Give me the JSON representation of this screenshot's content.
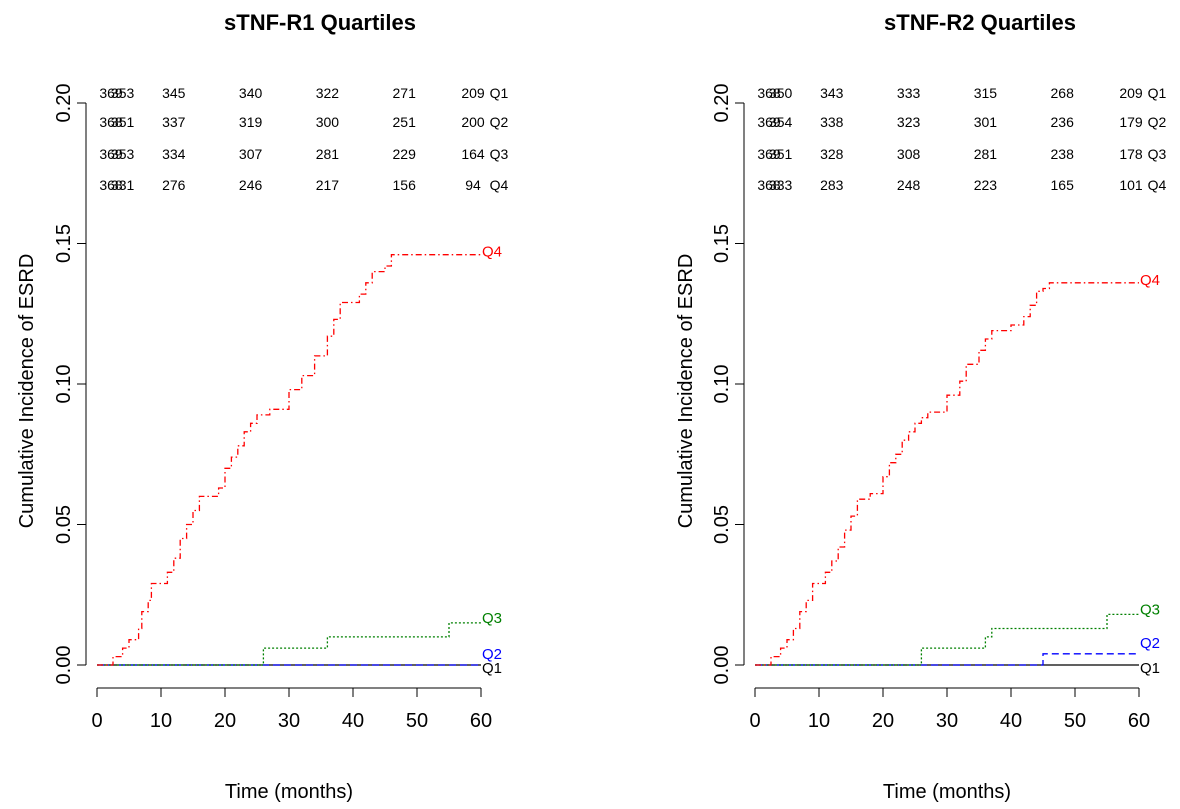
{
  "chart_data": [
    {
      "type": "line",
      "title": "sTNF-R1 Quartiles",
      "xlabel": "Time (months)",
      "ylabel": "Cumulative Incidence of ESRD",
      "xlim": [
        0,
        60
      ],
      "ylim": [
        0,
        0.2
      ],
      "x_ticks": [
        0,
        10,
        20,
        30,
        40,
        50,
        60
      ],
      "y_ticks": [
        0.0,
        0.05,
        0.1,
        0.15,
        0.2
      ],
      "grid": false,
      "at_risk": {
        "times": [
          0,
          4,
          12,
          24,
          36,
          48,
          60
        ],
        "rows": [
          {
            "label": "Q1",
            "values": [
              "369",
              "353",
              "345",
              "340",
              "322",
              "271",
              "209"
            ]
          },
          {
            "label": "Q2",
            "values": [
              "368",
              "351",
              "337",
              "319",
              "300",
              "251",
              "200"
            ]
          },
          {
            "label": "Q3",
            "values": [
              "369",
              "353",
              "334",
              "307",
              "281",
              "229",
              "164"
            ]
          },
          {
            "label": "Q4",
            "values": [
              "368",
              "331",
              "276",
              "246",
              "217",
              "156",
              "94"
            ]
          }
        ]
      },
      "series": [
        {
          "name": "Q1",
          "color": "#000000",
          "dash": "solid",
          "points": [
            [
              0,
              0
            ],
            [
              60,
              0
            ]
          ]
        },
        {
          "name": "Q2",
          "color": "#0000ff",
          "dash": "dashed",
          "points": [
            [
              0,
              0
            ],
            [
              60,
              0
            ]
          ]
        },
        {
          "name": "Q3",
          "color": "#008000",
          "dash": "dotted",
          "points": [
            [
              0,
              0
            ],
            [
              26,
              0
            ],
            [
              26,
              0.006
            ],
            [
              36,
              0.006
            ],
            [
              36,
              0.01
            ],
            [
              55,
              0.01
            ],
            [
              55,
              0.015
            ],
            [
              60,
              0.015
            ]
          ]
        },
        {
          "name": "Q4",
          "color": "#ff0000",
          "dash": "dotdash",
          "points": [
            [
              0,
              0
            ],
            [
              2.5,
              0
            ],
            [
              2.5,
              0.003
            ],
            [
              4,
              0.003
            ],
            [
              4,
              0.006
            ],
            [
              5,
              0.006
            ],
            [
              5,
              0.009
            ],
            [
              6.5,
              0.009
            ],
            [
              6.5,
              0.013
            ],
            [
              7,
              0.013
            ],
            [
              7,
              0.019
            ],
            [
              8,
              0.019
            ],
            [
              8,
              0.023
            ],
            [
              8.5,
              0.023
            ],
            [
              8.5,
              0.029
            ],
            [
              11,
              0.029
            ],
            [
              11,
              0.033
            ],
            [
              12,
              0.033
            ],
            [
              12,
              0.038
            ],
            [
              13,
              0.038
            ],
            [
              13,
              0.045
            ],
            [
              14,
              0.045
            ],
            [
              14,
              0.05
            ],
            [
              15,
              0.05
            ],
            [
              15,
              0.055
            ],
            [
              16,
              0.055
            ],
            [
              16,
              0.06
            ],
            [
              19,
              0.06
            ],
            [
              19,
              0.063
            ],
            [
              20,
              0.063
            ],
            [
              20,
              0.07
            ],
            [
              21,
              0.07
            ],
            [
              21,
              0.074
            ],
            [
              22,
              0.074
            ],
            [
              22,
              0.078
            ],
            [
              23,
              0.078
            ],
            [
              23,
              0.083
            ],
            [
              24,
              0.083
            ],
            [
              24,
              0.086
            ],
            [
              25,
              0.086
            ],
            [
              25,
              0.089
            ],
            [
              27,
              0.089
            ],
            [
              27,
              0.091
            ],
            [
              30,
              0.091
            ],
            [
              30,
              0.098
            ],
            [
              32,
              0.098
            ],
            [
              32,
              0.103
            ],
            [
              34,
              0.103
            ],
            [
              34,
              0.11
            ],
            [
              36,
              0.11
            ],
            [
              36,
              0.117
            ],
            [
              37,
              0.117
            ],
            [
              37,
              0.123
            ],
            [
              38,
              0.123
            ],
            [
              38,
              0.129
            ],
            [
              41,
              0.129
            ],
            [
              41,
              0.132
            ],
            [
              42,
              0.132
            ],
            [
              42,
              0.136
            ],
            [
              43,
              0.136
            ],
            [
              43,
              0.14
            ],
            [
              45,
              0.14
            ],
            [
              45,
              0.142
            ],
            [
              46,
              0.142
            ],
            [
              46,
              0.146
            ],
            [
              60,
              0.146
            ]
          ]
        }
      ]
    },
    {
      "type": "line",
      "title": "sTNF-R2 Quartiles",
      "xlabel": "Time (months)",
      "ylabel": "Cumulative Incidence of ESRD",
      "xlim": [
        0,
        60
      ],
      "ylim": [
        0,
        0.2
      ],
      "x_ticks": [
        0,
        10,
        20,
        30,
        40,
        50,
        60
      ],
      "y_ticks": [
        0.0,
        0.05,
        0.1,
        0.15,
        0.2
      ],
      "grid": false,
      "at_risk": {
        "times": [
          0,
          4,
          12,
          24,
          36,
          48,
          60
        ],
        "rows": [
          {
            "label": "Q1",
            "values": [
              "368",
              "350",
              "343",
              "333",
              "315",
              "268",
              "209"
            ]
          },
          {
            "label": "Q2",
            "values": [
              "369",
              "354",
              "338",
              "323",
              "301",
              "236",
              "179"
            ]
          },
          {
            "label": "Q3",
            "values": [
              "369",
              "351",
              "328",
              "308",
              "281",
              "238",
              "178"
            ]
          },
          {
            "label": "Q4",
            "values": [
              "368",
              "333",
              "283",
              "248",
              "223",
              "165",
              "101"
            ]
          }
        ]
      },
      "series": [
        {
          "name": "Q1",
          "color": "#000000",
          "dash": "solid",
          "points": [
            [
              0,
              0
            ],
            [
              60,
              0
            ]
          ]
        },
        {
          "name": "Q2",
          "color": "#0000ff",
          "dash": "dashed",
          "points": [
            [
              0,
              0
            ],
            [
              45,
              0
            ],
            [
              45,
              0.004
            ],
            [
              60,
              0.004
            ]
          ]
        },
        {
          "name": "Q3",
          "color": "#008000",
          "dash": "dotted",
          "points": [
            [
              0,
              0
            ],
            [
              26,
              0
            ],
            [
              26,
              0.006
            ],
            [
              36,
              0.006
            ],
            [
              36,
              0.01
            ],
            [
              37,
              0.01
            ],
            [
              37,
              0.013
            ],
            [
              55,
              0.013
            ],
            [
              55,
              0.018
            ],
            [
              60,
              0.018
            ]
          ]
        },
        {
          "name": "Q4",
          "color": "#ff0000",
          "dash": "dotdash",
          "points": [
            [
              0,
              0
            ],
            [
              2.5,
              0
            ],
            [
              2.5,
              0.003
            ],
            [
              4,
              0.003
            ],
            [
              4,
              0.006
            ],
            [
              5,
              0.006
            ],
            [
              5,
              0.009
            ],
            [
              6,
              0.009
            ],
            [
              6,
              0.013
            ],
            [
              7,
              0.013
            ],
            [
              7,
              0.019
            ],
            [
              8,
              0.019
            ],
            [
              8,
              0.023
            ],
            [
              9,
              0.023
            ],
            [
              9,
              0.029
            ],
            [
              11,
              0.029
            ],
            [
              11,
              0.033
            ],
            [
              12,
              0.033
            ],
            [
              12,
              0.037
            ],
            [
              13,
              0.037
            ],
            [
              13,
              0.042
            ],
            [
              14,
              0.042
            ],
            [
              14,
              0.048
            ],
            [
              15,
              0.048
            ],
            [
              15,
              0.053
            ],
            [
              16,
              0.053
            ],
            [
              16,
              0.059
            ],
            [
              18,
              0.059
            ],
            [
              18,
              0.061
            ],
            [
              20,
              0.061
            ],
            [
              20,
              0.067
            ],
            [
              21,
              0.067
            ],
            [
              21,
              0.072
            ],
            [
              22,
              0.072
            ],
            [
              22,
              0.075
            ],
            [
              23,
              0.075
            ],
            [
              23,
              0.08
            ],
            [
              24,
              0.08
            ],
            [
              24,
              0.083
            ],
            [
              25,
              0.083
            ],
            [
              25,
              0.086
            ],
            [
              26,
              0.086
            ],
            [
              26,
              0.088
            ],
            [
              27,
              0.088
            ],
            [
              27,
              0.09
            ],
            [
              30,
              0.09
            ],
            [
              30,
              0.096
            ],
            [
              32,
              0.096
            ],
            [
              32,
              0.101
            ],
            [
              33,
              0.101
            ],
            [
              33,
              0.107
            ],
            [
              35,
              0.107
            ],
            [
              35,
              0.112
            ],
            [
              36,
              0.112
            ],
            [
              36,
              0.116
            ],
            [
              37,
              0.116
            ],
            [
              37,
              0.119
            ],
            [
              40,
              0.119
            ],
            [
              40,
              0.121
            ],
            [
              42,
              0.121
            ],
            [
              42,
              0.124
            ],
            [
              43,
              0.124
            ],
            [
              43,
              0.128
            ],
            [
              44,
              0.128
            ],
            [
              44,
              0.133
            ],
            [
              45,
              0.133
            ],
            [
              45,
              0.134
            ],
            [
              46,
              0.134
            ],
            [
              46,
              0.136
            ],
            [
              60,
              0.136
            ]
          ]
        }
      ]
    }
  ]
}
